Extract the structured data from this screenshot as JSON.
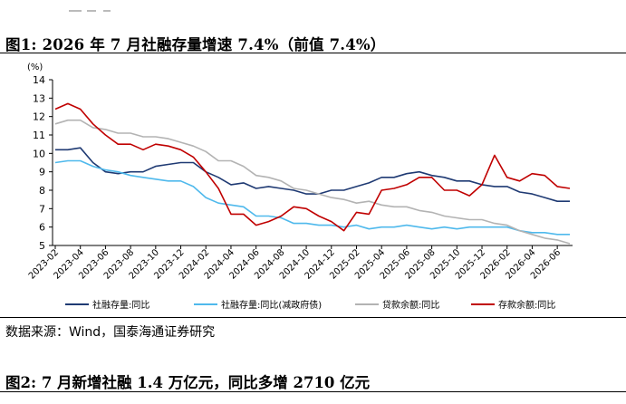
{
  "figure1_title": "图1:  2026 年 7 月社融存量增速 7.4%（前值 7.4%）",
  "source_note": "数据来源：Wind，国泰海通证券研究",
  "figure2_title": "图2:  7 月新增社融 1.4 万亿元，同比多增 2710 亿元",
  "colors": {
    "series1": "#1F3A73",
    "series2": "#4FB9EC",
    "series3": "#B3B3B3",
    "series4": "#C00000"
  },
  "chart_data": {
    "type": "line",
    "title": "",
    "xlabel": "",
    "ylabel": "(%)",
    "ylim": [
      5,
      14
    ],
    "yticks": [
      5,
      6,
      7,
      8,
      9,
      10,
      11,
      12,
      13,
      14
    ],
    "grid": false,
    "legend": "bottom",
    "x": [
      "2023-02",
      "2023-03",
      "2023-04",
      "2023-05",
      "2023-06",
      "2023-07",
      "2023-08",
      "2023-09",
      "2023-10",
      "2023-11",
      "2023-12",
      "2024-01",
      "2024-02",
      "2024-03",
      "2024-04",
      "2024-05",
      "2024-06",
      "2024-07",
      "2024-08",
      "2024-09",
      "2024-10",
      "2024-11",
      "2024-12",
      "2025-01",
      "2025-02",
      "2025-03",
      "2025-04",
      "2025-05",
      "2025-06",
      "2025-07",
      "2025-08",
      "2025-09",
      "2025-10",
      "2025-11",
      "2025-12",
      "2026-01",
      "2026-02",
      "2026-03",
      "2026-04",
      "2026-05",
      "2026-06",
      "2026-07"
    ],
    "xticks": [
      "2023-02",
      "2023-04",
      "2023-06",
      "2023-08",
      "2023-10",
      "2023-12",
      "2024-02",
      "2024-04",
      "2024-06",
      "2024-08",
      "2024-10",
      "2024-12",
      "2025-02",
      "2025-04",
      "2025-06",
      "2025-08",
      "2025-10",
      "2025-12",
      "2026-02",
      "2026-04",
      "2026-06"
    ],
    "series": [
      {
        "name": "社融存量:同比",
        "values": [
          10.2,
          10.2,
          10.3,
          9.5,
          9.0,
          8.9,
          9.0,
          9.0,
          9.3,
          9.4,
          9.5,
          9.5,
          9.0,
          8.7,
          8.3,
          8.4,
          8.1,
          8.2,
          8.1,
          8.0,
          7.8,
          7.8,
          8.0,
          8.0,
          8.2,
          8.4,
          8.7,
          8.7,
          8.9,
          9.0,
          8.8,
          8.7,
          8.5,
          8.5,
          8.3,
          8.2,
          8.2,
          7.9,
          7.8,
          7.6,
          7.4,
          7.4
        ]
      },
      {
        "name": "社融存量:同比(减政府债)",
        "values": [
          9.5,
          9.6,
          9.6,
          9.3,
          9.1,
          9.0,
          8.8,
          8.7,
          8.6,
          8.5,
          8.5,
          8.2,
          7.6,
          7.3,
          7.2,
          7.1,
          6.6,
          6.6,
          6.5,
          6.2,
          6.2,
          6.1,
          6.1,
          6.0,
          6.1,
          5.9,
          6.0,
          6.0,
          6.1,
          6.0,
          5.9,
          6.0,
          5.9,
          6.0,
          6.0,
          6.0,
          6.0,
          5.8,
          5.7,
          5.7,
          5.6,
          5.6
        ]
      },
      {
        "name": "贷款余额:同比",
        "values": [
          11.6,
          11.8,
          11.8,
          11.4,
          11.3,
          11.1,
          11.1,
          10.9,
          10.9,
          10.8,
          10.6,
          10.4,
          10.1,
          9.6,
          9.6,
          9.3,
          8.8,
          8.7,
          8.5,
          8.1,
          8.0,
          7.8,
          7.6,
          7.5,
          7.3,
          7.4,
          7.2,
          7.1,
          7.1,
          6.9,
          6.8,
          6.6,
          6.5,
          6.4,
          6.4,
          6.2,
          6.1,
          5.8,
          5.6,
          5.4,
          5.3,
          5.1
        ]
      },
      {
        "name": "存款余额:同比",
        "values": [
          12.4,
          12.7,
          12.4,
          11.6,
          11.0,
          10.5,
          10.5,
          10.2,
          10.5,
          10.4,
          10.2,
          9.8,
          9.0,
          8.1,
          6.7,
          6.7,
          6.1,
          6.3,
          6.6,
          7.1,
          7.0,
          6.6,
          6.3,
          5.8,
          6.8,
          6.7,
          8.0,
          8.1,
          8.3,
          8.7,
          8.7,
          8.0,
          8.0,
          7.7,
          8.3,
          9.9,
          8.7,
          8.5,
          8.9,
          8.8,
          8.2,
          8.1
        ]
      }
    ]
  }
}
